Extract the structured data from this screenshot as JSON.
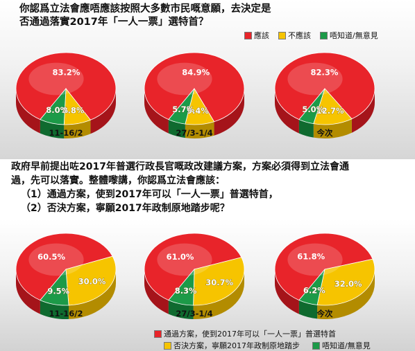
{
  "question1": {
    "line1": "你認爲立法會應唔應該按照大多數市民嘅意願，去決定是",
    "line2": "否通過落實2017年「一人一票」選特首？"
  },
  "question2": {
    "line1": "政府早前提出咗2017年普選行政長官嘅政改建議方案，方案必須得到立法會通",
    "line2": "過，先可以落實。整體嚟講，你認爲立法會應該：",
    "line3": "（1）通過方案，使到2017年可以「一人一票」普選特首，",
    "line4": "（2）否決方案，寧願2017年政制原地踏步呢？"
  },
  "legend1": {
    "items": [
      {
        "label": "應該",
        "color": "#e8242a"
      },
      {
        "label": "不應該",
        "color": "#f6c400"
      },
      {
        "label": "唔知道/無意見",
        "color": "#1c9a48"
      }
    ]
  },
  "legend2": {
    "items": [
      {
        "label": "通過方案，使到2017年可以「一人一票」普選特首",
        "color": "#e8242a"
      },
      {
        "label": "否決方案，寧願2017年政制原地踏步",
        "color": "#f6c400"
      },
      {
        "label": "唔知道/無意見",
        "color": "#1c9a48"
      }
    ]
  },
  "chart_data": [
    {
      "type": "pie",
      "label": "11-16/2",
      "values": [
        83.2,
        8.8,
        8.0
      ],
      "value_labels": [
        "83.2%",
        "8.8%",
        "8.0%"
      ]
    },
    {
      "type": "pie",
      "label": "27/3-1/4",
      "values": [
        84.9,
        9.4,
        5.7
      ],
      "value_labels": [
        "84.9%",
        "9.4%",
        "5.7%"
      ]
    },
    {
      "type": "pie",
      "label": "今次",
      "values": [
        82.3,
        12.7,
        5.0
      ],
      "value_labels": [
        "82.3%",
        "12.7%",
        "5.0%"
      ]
    },
    {
      "type": "pie",
      "label": "11-16/2",
      "values": [
        60.5,
        30.0,
        9.5
      ],
      "value_labels": [
        "60.5%",
        "30.0%",
        "9.5%"
      ]
    },
    {
      "type": "pie",
      "label": "27/3-1/4",
      "values": [
        61.0,
        30.7,
        8.3
      ],
      "value_labels": [
        "61.0%",
        "30.7%",
        "8.3%"
      ]
    },
    {
      "type": "pie",
      "label": "今次",
      "values": [
        61.8,
        32.0,
        6.2
      ],
      "value_labels": [
        "61.8%",
        "32.0%",
        "6.2%"
      ]
    }
  ],
  "colors": {
    "red": "#e8242a",
    "red_dark": "#a5141a",
    "yellow": "#f6c400",
    "yellow_dark": "#b38c00",
    "green": "#1c9a48",
    "green_dark": "#0f6a2f"
  }
}
